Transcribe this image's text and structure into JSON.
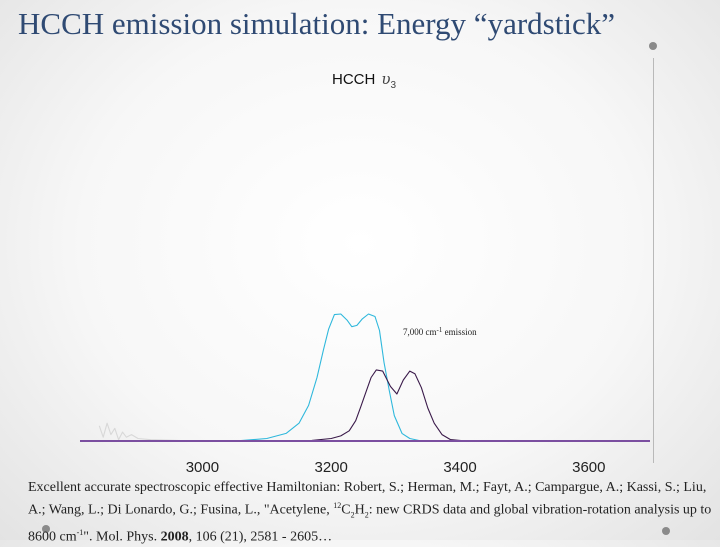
{
  "slide": {
    "title": "HCCH emission simulation: Energy “yardstick”"
  },
  "chart_data": {
    "type": "line",
    "title": "HCCH",
    "title_symbol": "υ",
    "title_subscript": "3",
    "xlim": [
      2810,
      3695
    ],
    "x_ticks": [
      3000,
      3200,
      3400,
      3600
    ],
    "x_tick_labels": [
      "3000",
      "3200",
      "3400",
      "3600"
    ],
    "y_units": "relative intensity (0 = baseline, 1 = cyan peak)",
    "annotation": {
      "text_pre": "7,000 cm",
      "text_sup": "-1",
      "text_post": " emission"
    },
    "series": [
      {
        "color": "#2fb8dc",
        "x": [
          3000,
          3060,
          3100,
          3130,
          3150,
          3165,
          3178,
          3188,
          3196,
          3205,
          3215,
          3225,
          3232,
          3240,
          3248,
          3258,
          3268,
          3275,
          3282,
          3290,
          3298,
          3310,
          3322,
          3340
        ],
        "y": [
          0,
          0.003,
          0.02,
          0.06,
          0.14,
          0.28,
          0.5,
          0.72,
          0.88,
          0.995,
          1.0,
          0.95,
          0.9,
          0.91,
          0.96,
          1.0,
          0.98,
          0.87,
          0.62,
          0.4,
          0.2,
          0.06,
          0.02,
          0
        ]
      },
      {
        "color": "#3a1a4a",
        "x": [
          3130,
          3170,
          3200,
          3215,
          3228,
          3238,
          3246,
          3255,
          3262,
          3270,
          3280,
          3292,
          3302,
          3312,
          3322,
          3330,
          3340,
          3350,
          3360,
          3372,
          3385,
          3410
        ],
        "y": [
          0,
          0.005,
          0.02,
          0.04,
          0.08,
          0.16,
          0.27,
          0.4,
          0.5,
          0.56,
          0.55,
          0.43,
          0.37,
          0.48,
          0.55,
          0.53,
          0.42,
          0.26,
          0.14,
          0.05,
          0.012,
          0
        ]
      },
      {
        "color": "#d8d8d8",
        "x": [
          2840,
          2846,
          2852,
          2858,
          2864,
          2870,
          2876,
          2882,
          2890,
          2900,
          2920,
          2960,
          2990
        ],
        "y": [
          0.12,
          0.03,
          0.14,
          0.05,
          0.1,
          0.01,
          0.07,
          0.03,
          0.05,
          0.02,
          0.01,
          0.005,
          0
        ]
      }
    ],
    "baseline_color": "#7b4fa0"
  },
  "caption": {
    "text_before_sup": "Excellent accurate spectroscopic effective Hamiltonian: Robert, S.; Herman, M.; Fayt, A.; Campargue, A.; Kassi, S.; Liu, A.; Wang, L.; Di Lonardo, G.; Fusina, L., \"Acetylene, ",
    "sup": "12",
    "c_letter": "C",
    "sub1": "2",
    "h_letter": "H",
    "sub2": "2",
    "text_after_formula": ": new CRDS data and global vibration-rotation analysis up to 8600 cm",
    "sup2": "-1",
    "text_after_sup2": "\". Mol. Phys. ",
    "year": "2008",
    "text_end": ", 106 (21), 2581 - 2605…"
  }
}
